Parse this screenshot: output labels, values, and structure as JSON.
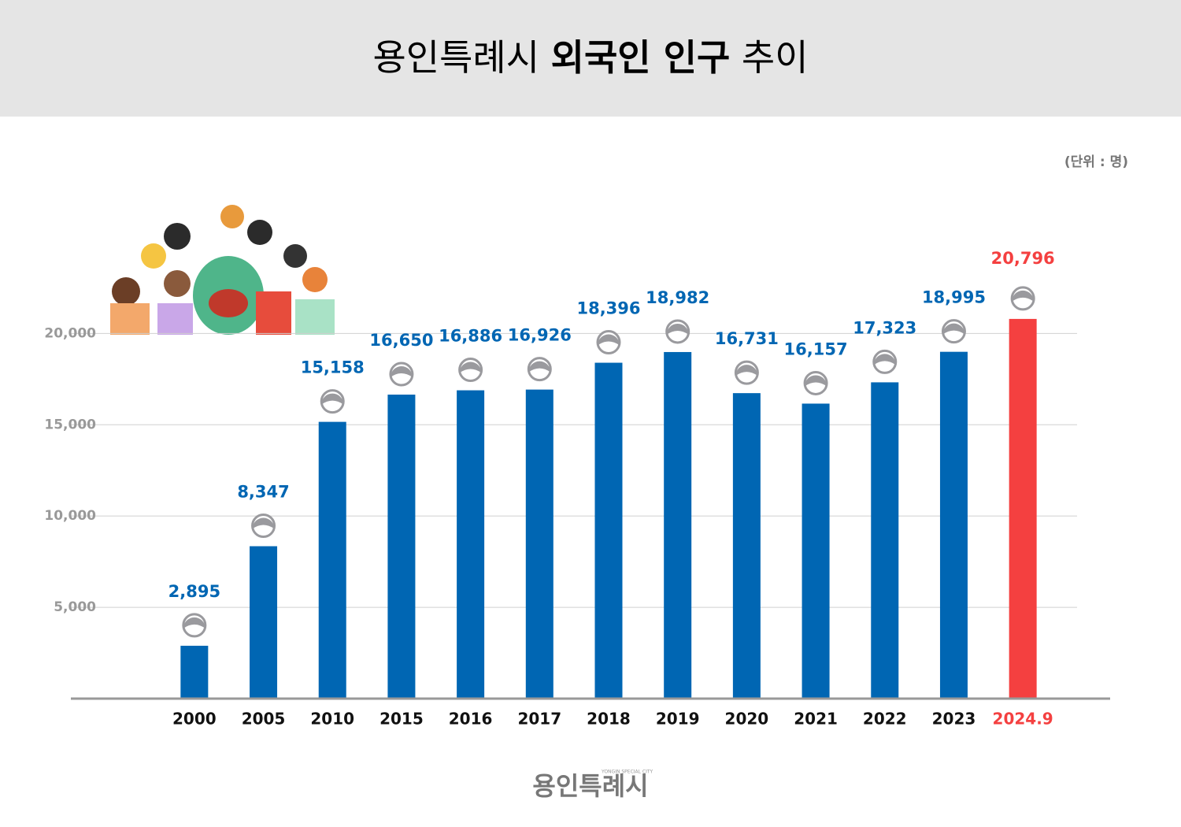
{
  "chart_data": {
    "type": "bar",
    "title": {
      "prefix": "용인특례시",
      "emphasis": "외국인 인구",
      "suffix": "추이"
    },
    "unit": "(단위 : 명)",
    "footer": {
      "logo": "용인특례시",
      "logo_sub": "YONGIN SPECIAL CITY"
    },
    "categories": [
      "2000",
      "2005",
      "2010",
      "2015",
      "2016",
      "2017",
      "2018",
      "2019",
      "2020",
      "2021",
      "2022",
      "2023",
      "2024.9"
    ],
    "values": [
      2895,
      8347,
      15158,
      16650,
      16886,
      16926,
      18396,
      18982,
      16731,
      16157,
      17323,
      18995,
      20796
    ],
    "value_labels": [
      "2,895",
      "8,347",
      "15,158",
      "16,650",
      "16,886",
      "16,926",
      "18,396",
      "18,982",
      "16,731",
      "16,157",
      "17,323",
      "18,995",
      "20,796"
    ],
    "colors": [
      "#0066b3",
      "#0066b3",
      "#0066b3",
      "#0066b3",
      "#0066b3",
      "#0066b3",
      "#0066b3",
      "#0066b3",
      "#0066b3",
      "#0066b3",
      "#0066b3",
      "#0066b3",
      "#f44040"
    ],
    "ylim": [
      0,
      22000
    ],
    "yticks": [
      {
        "value": 5000,
        "label": "5,000"
      },
      {
        "value": 10000,
        "label": "10,000"
      },
      {
        "value": 15000,
        "label": "15,000"
      },
      {
        "value": 20000,
        "label": "20,000"
      }
    ],
    "grid": true
  }
}
